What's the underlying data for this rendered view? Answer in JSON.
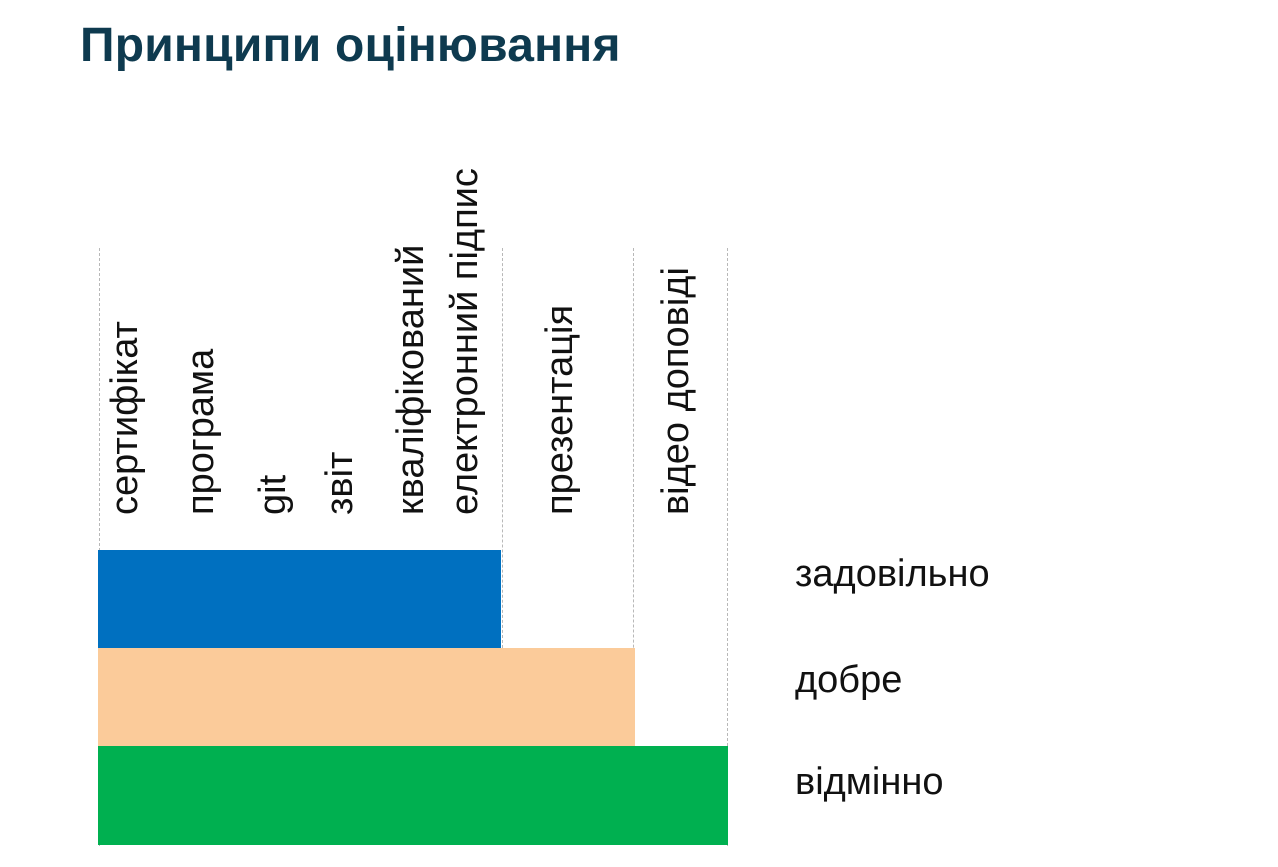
{
  "title": "Принципи оцінювання",
  "items": {
    "certificate": "сертифікат",
    "program": "програма",
    "git": "git",
    "report": "звіт",
    "signature_line1": "кваліфікований",
    "signature_line2": "електронний підпис",
    "presentation": "презентація",
    "video": "відео доповіді"
  },
  "levels": {
    "satisfactory": "задовільно",
    "good": "добре",
    "excellent": "відмінно"
  },
  "colors": {
    "satisfactory": "#0070c0",
    "good": "#fbcb9a",
    "excellent": "#00b050",
    "title": "#0e3a4f"
  }
}
